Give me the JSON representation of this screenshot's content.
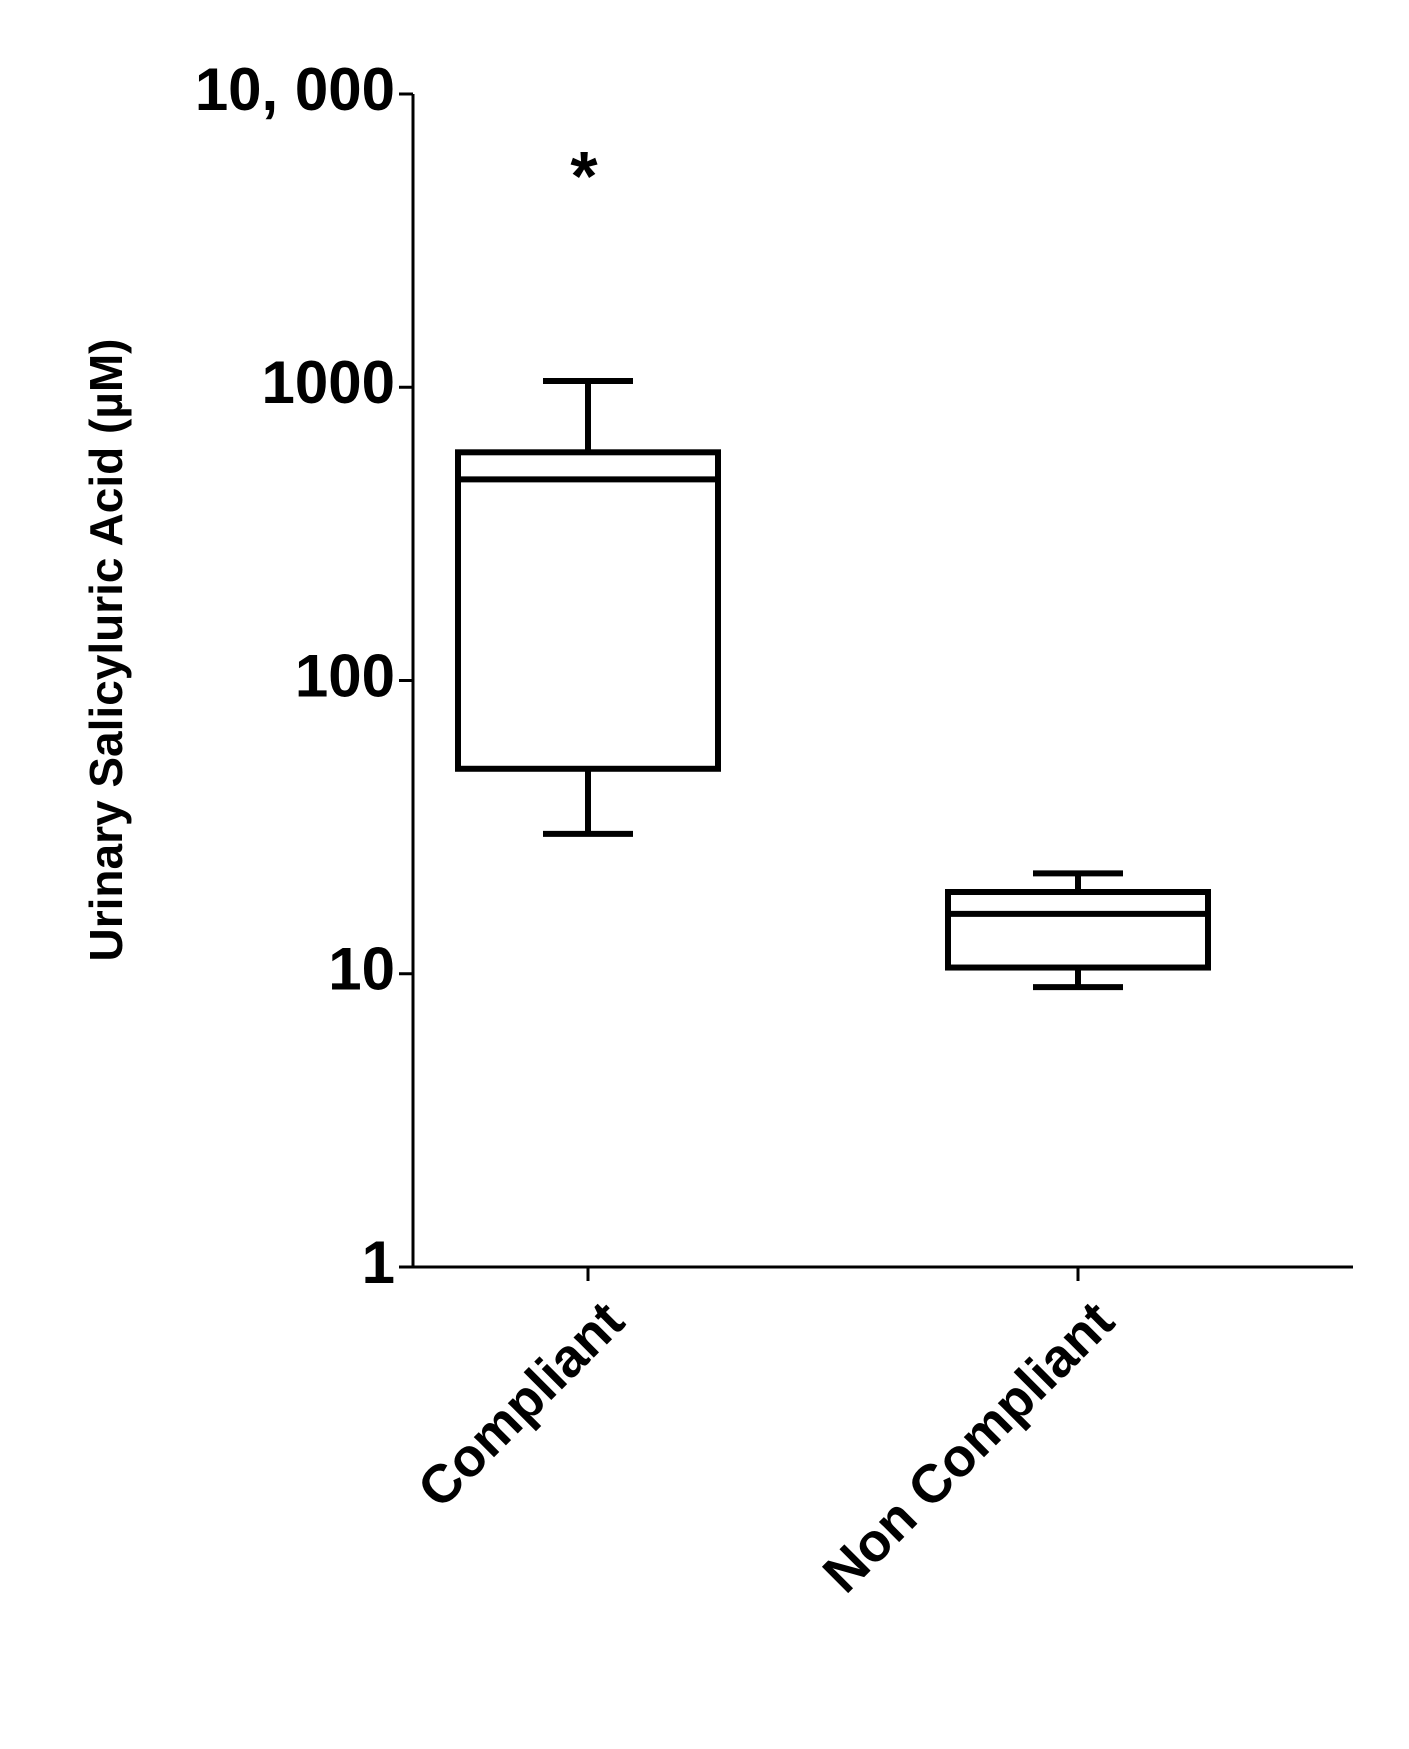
{
  "chart_data": {
    "type": "box",
    "y_label": "Urinary Salicyluric Acid (µM)",
    "categories": [
      "Compliant",
      "Non Compliant"
    ],
    "min": [
      30,
      9
    ],
    "q1": [
      50,
      10.5
    ],
    "median": [
      485,
      16
    ],
    "q3": [
      600,
      19
    ],
    "max": [
      1050,
      22
    ],
    "color": "#000000",
    "log_scale": true,
    "ylim": [
      1,
      10000
    ],
    "yticks": [
      1,
      10,
      100,
      1000,
      {
        "value": 10000,
        "label": "10, 000"
      }
    ],
    "annotation": "*"
  }
}
